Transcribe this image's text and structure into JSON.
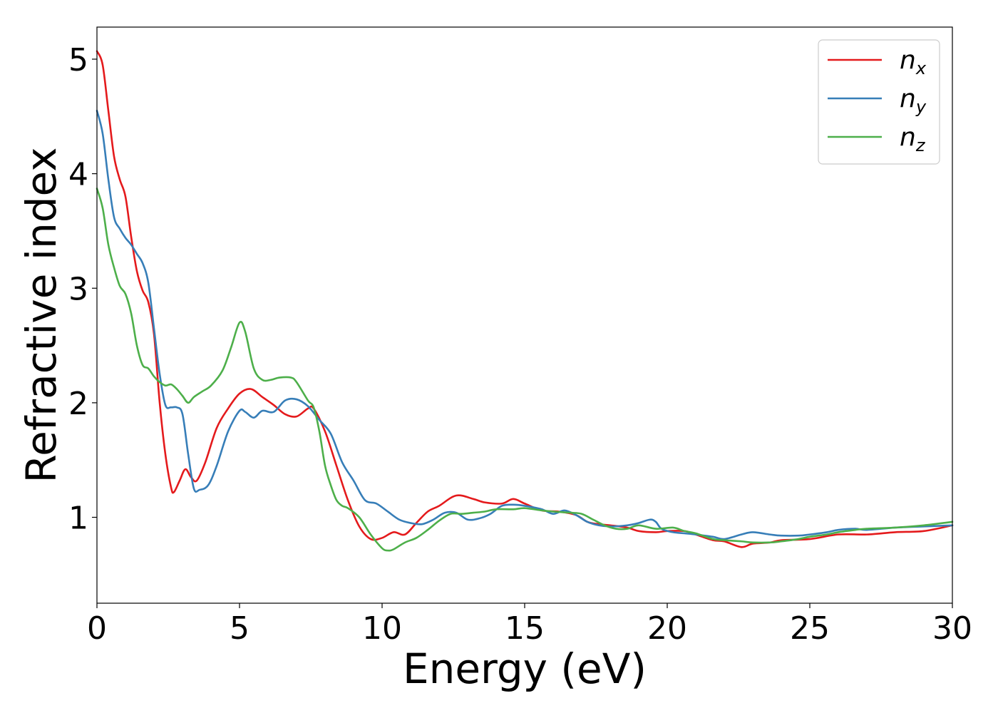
{
  "chart_data": {
    "type": "line",
    "xlabel": "Energy (eV)",
    "ylabel": "Refractive index",
    "xlim": [
      0,
      30
    ],
    "ylim": [
      0.25,
      5.28
    ],
    "xticks": [
      0,
      5,
      10,
      15,
      20,
      25,
      30
    ],
    "yticks": [
      1,
      2,
      3,
      4,
      5
    ],
    "grid": false,
    "legend_position": "top-right",
    "series": [
      {
        "name": "n",
        "subscript": "x",
        "color": "#e41a1c",
        "points": [
          [
            0.0,
            5.07
          ],
          [
            0.2,
            4.95
          ],
          [
            0.4,
            4.55
          ],
          [
            0.6,
            4.15
          ],
          [
            0.8,
            3.95
          ],
          [
            1.0,
            3.8
          ],
          [
            1.2,
            3.45
          ],
          [
            1.4,
            3.15
          ],
          [
            1.6,
            2.98
          ],
          [
            1.8,
            2.88
          ],
          [
            2.0,
            2.6
          ],
          [
            2.2,
            2.0
          ],
          [
            2.4,
            1.55
          ],
          [
            2.6,
            1.26
          ],
          [
            2.7,
            1.22
          ],
          [
            2.9,
            1.32
          ],
          [
            3.1,
            1.42
          ],
          [
            3.3,
            1.35
          ],
          [
            3.5,
            1.32
          ],
          [
            3.8,
            1.48
          ],
          [
            4.2,
            1.78
          ],
          [
            4.6,
            1.95
          ],
          [
            5.0,
            2.08
          ],
          [
            5.4,
            2.12
          ],
          [
            5.8,
            2.05
          ],
          [
            6.2,
            1.98
          ],
          [
            6.6,
            1.9
          ],
          [
            7.0,
            1.88
          ],
          [
            7.4,
            1.95
          ],
          [
            7.6,
            1.95
          ],
          [
            8.0,
            1.75
          ],
          [
            8.4,
            1.45
          ],
          [
            8.8,
            1.15
          ],
          [
            9.2,
            0.92
          ],
          [
            9.6,
            0.81
          ],
          [
            10.0,
            0.82
          ],
          [
            10.4,
            0.87
          ],
          [
            10.8,
            0.85
          ],
          [
            11.2,
            0.95
          ],
          [
            11.6,
            1.05
          ],
          [
            12.0,
            1.1
          ],
          [
            12.6,
            1.19
          ],
          [
            13.2,
            1.16
          ],
          [
            13.6,
            1.13
          ],
          [
            14.2,
            1.12
          ],
          [
            14.6,
            1.16
          ],
          [
            15.0,
            1.12
          ],
          [
            15.6,
            1.06
          ],
          [
            16.2,
            1.05
          ],
          [
            16.8,
            1.02
          ],
          [
            17.2,
            0.96
          ],
          [
            17.6,
            0.94
          ],
          [
            18.0,
            0.93
          ],
          [
            18.6,
            0.91
          ],
          [
            19.0,
            0.88
          ],
          [
            19.6,
            0.87
          ],
          [
            20.0,
            0.88
          ],
          [
            20.6,
            0.88
          ],
          [
            21.0,
            0.85
          ],
          [
            21.6,
            0.8
          ],
          [
            22.0,
            0.79
          ],
          [
            22.6,
            0.74
          ],
          [
            23.0,
            0.77
          ],
          [
            23.6,
            0.78
          ],
          [
            24.0,
            0.8
          ],
          [
            25.0,
            0.81
          ],
          [
            26.0,
            0.85
          ],
          [
            27.0,
            0.85
          ],
          [
            28.0,
            0.87
          ],
          [
            29.0,
            0.88
          ],
          [
            30.0,
            0.93
          ]
        ]
      },
      {
        "name": "n",
        "subscript": "y",
        "color": "#377eb8",
        "points": [
          [
            0.0,
            4.55
          ],
          [
            0.2,
            4.35
          ],
          [
            0.4,
            3.95
          ],
          [
            0.6,
            3.62
          ],
          [
            0.8,
            3.52
          ],
          [
            1.0,
            3.44
          ],
          [
            1.2,
            3.38
          ],
          [
            1.4,
            3.3
          ],
          [
            1.6,
            3.22
          ],
          [
            1.8,
            3.05
          ],
          [
            2.0,
            2.65
          ],
          [
            2.2,
            2.25
          ],
          [
            2.4,
            1.98
          ],
          [
            2.6,
            1.96
          ],
          [
            2.8,
            1.96
          ],
          [
            3.0,
            1.9
          ],
          [
            3.2,
            1.55
          ],
          [
            3.4,
            1.25
          ],
          [
            3.6,
            1.24
          ],
          [
            3.9,
            1.28
          ],
          [
            4.2,
            1.45
          ],
          [
            4.6,
            1.75
          ],
          [
            5.0,
            1.93
          ],
          [
            5.2,
            1.92
          ],
          [
            5.5,
            1.87
          ],
          [
            5.8,
            1.93
          ],
          [
            6.2,
            1.92
          ],
          [
            6.6,
            2.02
          ],
          [
            7.0,
            2.03
          ],
          [
            7.4,
            1.97
          ],
          [
            7.8,
            1.85
          ],
          [
            8.2,
            1.73
          ],
          [
            8.6,
            1.48
          ],
          [
            9.0,
            1.32
          ],
          [
            9.4,
            1.15
          ],
          [
            9.8,
            1.12
          ],
          [
            10.2,
            1.05
          ],
          [
            10.6,
            0.98
          ],
          [
            11.0,
            0.95
          ],
          [
            11.4,
            0.94
          ],
          [
            11.8,
            0.98
          ],
          [
            12.2,
            1.04
          ],
          [
            12.6,
            1.04
          ],
          [
            13.0,
            0.98
          ],
          [
            13.4,
            0.99
          ],
          [
            13.8,
            1.03
          ],
          [
            14.2,
            1.1
          ],
          [
            14.6,
            1.11
          ],
          [
            15.0,
            1.1
          ],
          [
            15.6,
            1.07
          ],
          [
            16.0,
            1.03
          ],
          [
            16.4,
            1.06
          ],
          [
            16.8,
            1.02
          ],
          [
            17.2,
            0.96
          ],
          [
            17.6,
            0.93
          ],
          [
            18.0,
            0.92
          ],
          [
            18.6,
            0.93
          ],
          [
            19.0,
            0.95
          ],
          [
            19.4,
            0.98
          ],
          [
            19.6,
            0.96
          ],
          [
            19.8,
            0.9
          ],
          [
            20.2,
            0.87
          ],
          [
            20.6,
            0.86
          ],
          [
            21.0,
            0.85
          ],
          [
            21.6,
            0.83
          ],
          [
            22.0,
            0.81
          ],
          [
            22.6,
            0.85
          ],
          [
            23.0,
            0.87
          ],
          [
            23.6,
            0.85
          ],
          [
            24.0,
            0.84
          ],
          [
            24.6,
            0.84
          ],
          [
            25.0,
            0.85
          ],
          [
            25.6,
            0.87
          ],
          [
            26.0,
            0.89
          ],
          [
            26.6,
            0.9
          ],
          [
            27.0,
            0.89
          ],
          [
            28.0,
            0.91
          ],
          [
            29.0,
            0.92
          ],
          [
            30.0,
            0.93
          ]
        ]
      },
      {
        "name": "n",
        "subscript": "z",
        "color": "#4daf4a",
        "points": [
          [
            0.0,
            3.87
          ],
          [
            0.2,
            3.7
          ],
          [
            0.4,
            3.38
          ],
          [
            0.6,
            3.18
          ],
          [
            0.8,
            3.02
          ],
          [
            1.0,
            2.95
          ],
          [
            1.2,
            2.78
          ],
          [
            1.4,
            2.5
          ],
          [
            1.6,
            2.33
          ],
          [
            1.8,
            2.3
          ],
          [
            2.0,
            2.23
          ],
          [
            2.2,
            2.18
          ],
          [
            2.4,
            2.15
          ],
          [
            2.6,
            2.16
          ],
          [
            2.8,
            2.12
          ],
          [
            3.0,
            2.06
          ],
          [
            3.2,
            2.0
          ],
          [
            3.4,
            2.05
          ],
          [
            3.7,
            2.1
          ],
          [
            4.0,
            2.15
          ],
          [
            4.4,
            2.28
          ],
          [
            4.7,
            2.48
          ],
          [
            5.0,
            2.7
          ],
          [
            5.2,
            2.62
          ],
          [
            5.5,
            2.3
          ],
          [
            5.8,
            2.2
          ],
          [
            6.1,
            2.2
          ],
          [
            6.4,
            2.22
          ],
          [
            6.8,
            2.22
          ],
          [
            7.0,
            2.18
          ],
          [
            7.4,
            2.02
          ],
          [
            7.6,
            1.96
          ],
          [
            7.8,
            1.75
          ],
          [
            8.0,
            1.45
          ],
          [
            8.2,
            1.28
          ],
          [
            8.4,
            1.15
          ],
          [
            8.6,
            1.1
          ],
          [
            8.8,
            1.08
          ],
          [
            9.2,
            1.0
          ],
          [
            9.6,
            0.85
          ],
          [
            10.0,
            0.73
          ],
          [
            10.2,
            0.71
          ],
          [
            10.4,
            0.72
          ],
          [
            10.8,
            0.78
          ],
          [
            11.2,
            0.82
          ],
          [
            11.6,
            0.89
          ],
          [
            12.0,
            0.97
          ],
          [
            12.4,
            1.03
          ],
          [
            12.8,
            1.03
          ],
          [
            13.2,
            1.04
          ],
          [
            13.6,
            1.05
          ],
          [
            14.0,
            1.07
          ],
          [
            14.6,
            1.07
          ],
          [
            15.0,
            1.08
          ],
          [
            15.6,
            1.06
          ],
          [
            16.0,
            1.05
          ],
          [
            16.6,
            1.04
          ],
          [
            17.0,
            1.03
          ],
          [
            17.4,
            0.98
          ],
          [
            17.8,
            0.93
          ],
          [
            18.2,
            0.9
          ],
          [
            18.6,
            0.9
          ],
          [
            19.0,
            0.93
          ],
          [
            19.6,
            0.9
          ],
          [
            20.2,
            0.91
          ],
          [
            20.6,
            0.88
          ],
          [
            21.0,
            0.86
          ],
          [
            21.6,
            0.81
          ],
          [
            22.0,
            0.8
          ],
          [
            22.6,
            0.79
          ],
          [
            23.0,
            0.78
          ],
          [
            23.6,
            0.78
          ],
          [
            24.0,
            0.79
          ],
          [
            24.6,
            0.81
          ],
          [
            25.0,
            0.83
          ],
          [
            25.6,
            0.85
          ],
          [
            26.0,
            0.87
          ],
          [
            26.6,
            0.89
          ],
          [
            27.0,
            0.9
          ],
          [
            28.0,
            0.91
          ],
          [
            29.0,
            0.93
          ],
          [
            30.0,
            0.96
          ]
        ]
      }
    ]
  }
}
